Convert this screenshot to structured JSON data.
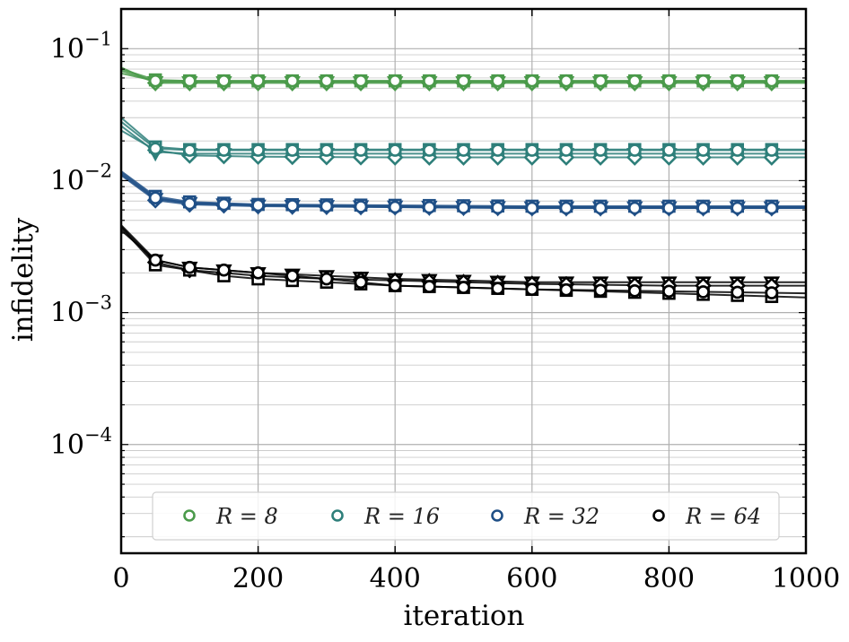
{
  "chart_data": {
    "type": "line",
    "xlabel": "iteration",
    "ylabel": "infidelity",
    "xlim": [
      0,
      1000
    ],
    "ylim": [
      1.5e-05,
      0.2
    ],
    "yscale": "log",
    "grid": true,
    "legend_position": "bottom-center",
    "x_ticks": [
      0,
      200,
      400,
      600,
      800,
      1000
    ],
    "x_tick_labels": [
      "0",
      "200",
      "400",
      "600",
      "800",
      "1000"
    ],
    "y_ticks": [
      {
        "value": 0.1,
        "base": "10",
        "exp": "−1"
      },
      {
        "value": 0.01,
        "base": "10",
        "exp": "−2"
      },
      {
        "value": 0.001,
        "base": "10",
        "exp": "−3"
      },
      {
        "value": 0.0001,
        "base": "10",
        "exp": "−4"
      }
    ],
    "legend": [
      {
        "label": "R = 8",
        "color": "#4a9a4a"
      },
      {
        "label": "R = 16",
        "color": "#2e7f7a"
      },
      {
        "label": "R = 32",
        "color": "#1f4f86"
      },
      {
        "label": "R = 64",
        "color": "#000000"
      }
    ],
    "groups": [
      {
        "name": "R = 8",
        "color": "#4a9a4a",
        "series": [
          {
            "marker": "circle",
            "x": [
              0,
              50,
              100,
              200,
              400,
              600,
              800,
              1000
            ],
            "y": [
              0.065,
              0.057,
              0.057,
              0.057,
              0.057,
              0.057,
              0.057,
              0.057
            ]
          },
          {
            "marker": "square",
            "x": [
              0,
              50,
              100,
              200,
              400,
              600,
              800,
              1000
            ],
            "y": [
              0.07,
              0.058,
              0.057,
              0.057,
              0.057,
              0.057,
              0.057,
              0.057
            ]
          },
          {
            "marker": "diamond",
            "x": [
              0,
              50,
              100,
              200,
              400,
              600,
              800,
              1000
            ],
            "y": [
              0.072,
              0.055,
              0.055,
              0.055,
              0.055,
              0.055,
              0.055,
              0.055
            ]
          },
          {
            "marker": "triangle-down",
            "x": [
              0,
              50,
              100,
              200,
              400,
              600,
              800,
              1000
            ],
            "y": [
              0.068,
              0.056,
              0.056,
              0.056,
              0.056,
              0.056,
              0.056,
              0.056
            ]
          }
        ]
      },
      {
        "name": "R = 16",
        "color": "#2e7f7a",
        "series": [
          {
            "marker": "circle",
            "x": [
              0,
              50,
              100,
              200,
              400,
              600,
              800,
              1000
            ],
            "y": [
              0.028,
              0.0175,
              0.017,
              0.017,
              0.017,
              0.017,
              0.017,
              0.017
            ]
          },
          {
            "marker": "square",
            "x": [
              0,
              50,
              100,
              200,
              400,
              600,
              800,
              1000
            ],
            "y": [
              0.03,
              0.018,
              0.0172,
              0.0172,
              0.0172,
              0.0172,
              0.0172,
              0.0172
            ]
          },
          {
            "marker": "diamond",
            "x": [
              0,
              50,
              100,
              200,
              400,
              600,
              800,
              1000
            ],
            "y": [
              0.024,
              0.017,
              0.0155,
              0.0152,
              0.015,
              0.015,
              0.015,
              0.015
            ]
          },
          {
            "marker": "triangle-down",
            "x": [
              0,
              50,
              100,
              200,
              400,
              600,
              800,
              1000
            ],
            "y": [
              0.026,
              0.0165,
              0.016,
              0.016,
              0.016,
              0.016,
              0.016,
              0.016
            ]
          }
        ]
      },
      {
        "name": "R = 32",
        "color": "#1f4f86",
        "series": [
          {
            "marker": "circle",
            "x": [
              0,
              50,
              100,
              200,
              400,
              600,
              800,
              1000
            ],
            "y": [
              0.0115,
              0.0074,
              0.0067,
              0.0065,
              0.0063,
              0.0062,
              0.0062,
              0.0062
            ]
          },
          {
            "marker": "square",
            "x": [
              0,
              50,
              100,
              200,
              400,
              600,
              800,
              1000
            ],
            "y": [
              0.0118,
              0.0076,
              0.0069,
              0.0066,
              0.0065,
              0.0064,
              0.0064,
              0.0064
            ]
          },
          {
            "marker": "diamond",
            "x": [
              0,
              50,
              100,
              200,
              400,
              600,
              800,
              1000
            ],
            "y": [
              0.011,
              0.0071,
              0.0066,
              0.0064,
              0.0063,
              0.0062,
              0.0062,
              0.0062
            ]
          },
          {
            "marker": "triangle-down",
            "x": [
              0,
              50,
              100,
              200,
              400,
              600,
              800,
              1000
            ],
            "y": [
              0.0112,
              0.0073,
              0.0068,
              0.0065,
              0.0064,
              0.0063,
              0.0063,
              0.0063
            ]
          }
        ]
      },
      {
        "name": "R = 64",
        "color": "#000000",
        "series": [
          {
            "marker": "circle",
            "x": [
              0,
              50,
              100,
              150,
              200,
              300,
              400,
              500,
              600,
              800,
              1000
            ],
            "y": [
              0.0042,
              0.0025,
              0.0022,
              0.0021,
              0.002,
              0.0018,
              0.0016,
              0.00155,
              0.0015,
              0.00145,
              0.0014
            ]
          },
          {
            "marker": "square",
            "x": [
              0,
              50,
              100,
              150,
              200,
              300,
              400,
              500,
              600,
              800,
              1000
            ],
            "y": [
              0.0044,
              0.0023,
              0.0021,
              0.0019,
              0.0018,
              0.0017,
              0.0016,
              0.00155,
              0.0015,
              0.0014,
              0.0013
            ]
          },
          {
            "marker": "diamond",
            "x": [
              0,
              50,
              100,
              150,
              200,
              300,
              400,
              500,
              600,
              800,
              1000
            ],
            "y": [
              0.0045,
              0.0024,
              0.0021,
              0.002,
              0.0019,
              0.0018,
              0.00175,
              0.0017,
              0.00165,
              0.0016,
              0.0016
            ]
          },
          {
            "marker": "triangle-down",
            "x": [
              0,
              50,
              100,
              150,
              200,
              300,
              400,
              500,
              600,
              800,
              1000
            ],
            "y": [
              0.0046,
              0.0025,
              0.0022,
              0.0021,
              0.002,
              0.0019,
              0.0018,
              0.00175,
              0.0017,
              0.0017,
              0.0017
            ]
          }
        ]
      }
    ]
  }
}
